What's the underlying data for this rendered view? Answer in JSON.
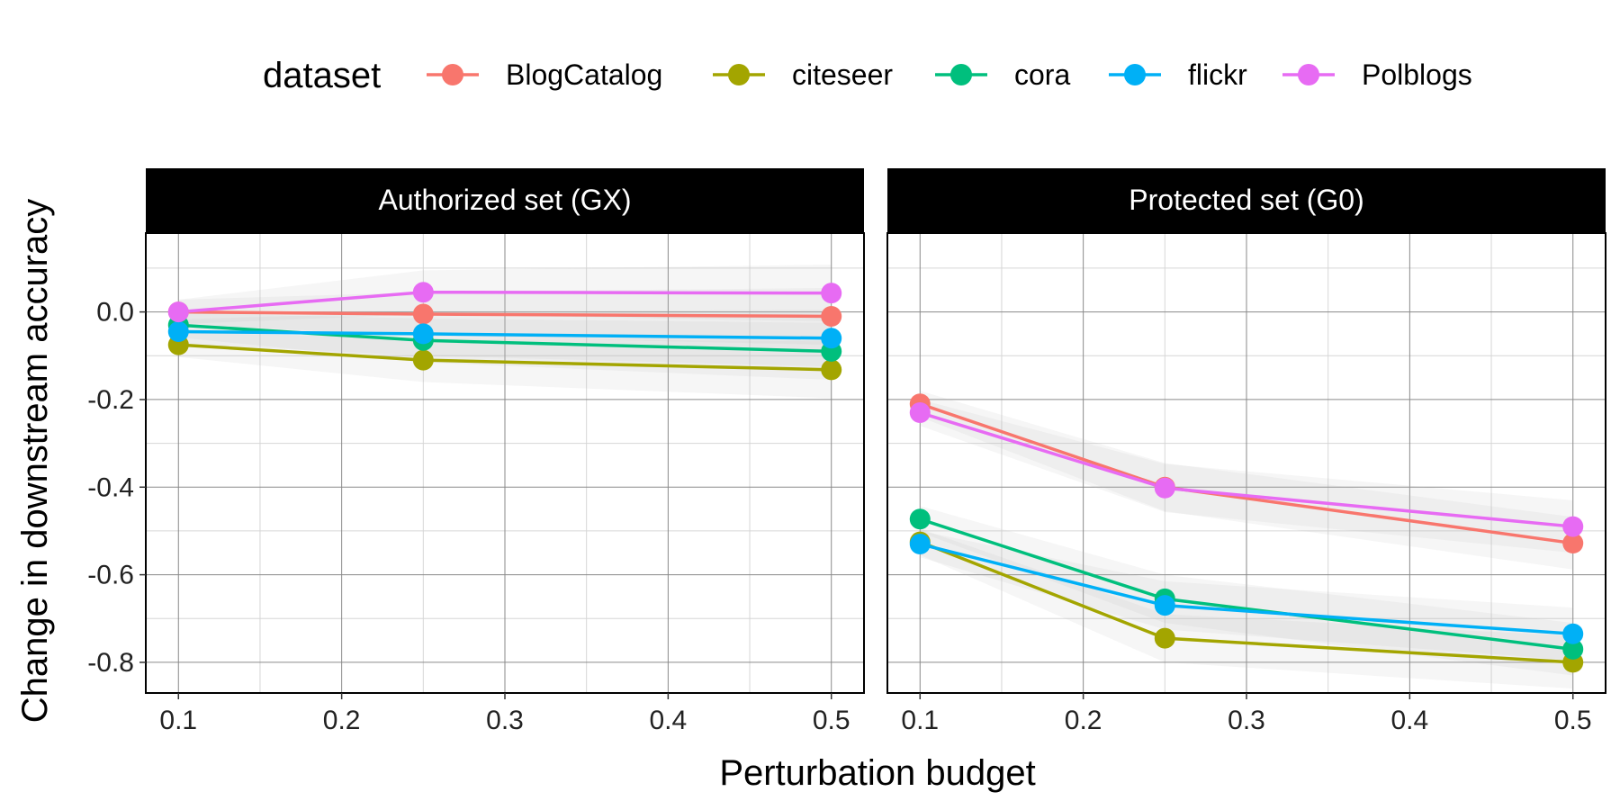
{
  "chart_data": {
    "type": "line",
    "xlabel": "Perturbation budget",
    "ylabel": "Change in downstream accuracy",
    "legend": {
      "title": "dataset",
      "position": "top",
      "entries": [
        "BlogCatalog",
        "citeseer",
        "cora",
        "flickr",
        "Polblogs"
      ]
    },
    "colors": {
      "BlogCatalog": "#F8766D",
      "citeseer": "#A3A500",
      "cora": "#00BF7D",
      "flickr": "#00B0F6",
      "Polblogs": "#E76BF3"
    },
    "x": [
      0.1,
      0.25,
      0.5
    ],
    "xlim": [
      0.08,
      0.52
    ],
    "ylim": [
      -0.87,
      0.18
    ],
    "x_ticks": [
      0.1,
      0.2,
      0.3,
      0.4,
      0.5
    ],
    "x_tick_labels": [
      "0.1",
      "0.2",
      "0.3",
      "0.4",
      "0.5"
    ],
    "y_ticks": [
      0.0,
      -0.2,
      -0.4,
      -0.6,
      -0.8
    ],
    "y_tick_labels": [
      "0.0",
      "-0.2",
      "-0.4",
      "-0.6",
      "-0.8"
    ],
    "grid": true,
    "confidence_band": true,
    "panels": [
      {
        "title": "Authorized set (GX)",
        "series": [
          {
            "name": "BlogCatalog",
            "values": [
              0.0,
              -0.005,
              -0.01
            ]
          },
          {
            "name": "citeseer",
            "values": [
              -0.075,
              -0.11,
              -0.132
            ]
          },
          {
            "name": "cora",
            "values": [
              -0.03,
              -0.065,
              -0.09
            ]
          },
          {
            "name": "flickr",
            "values": [
              -0.045,
              -0.05,
              -0.06
            ]
          },
          {
            "name": "Polblogs",
            "values": [
              0.0,
              0.045,
              0.043
            ]
          }
        ]
      },
      {
        "title": "Protected set (G0)",
        "series": [
          {
            "name": "BlogCatalog",
            "values": [
              -0.21,
              -0.4,
              -0.528
            ]
          },
          {
            "name": "citeseer",
            "values": [
              -0.525,
              -0.745,
              -0.8
            ]
          },
          {
            "name": "cora",
            "values": [
              -0.473,
              -0.655,
              -0.77
            ]
          },
          {
            "name": "flickr",
            "values": [
              -0.53,
              -0.67,
              -0.735
            ]
          },
          {
            "name": "Polblogs",
            "values": [
              -0.23,
              -0.402,
              -0.49
            ]
          }
        ]
      }
    ]
  }
}
